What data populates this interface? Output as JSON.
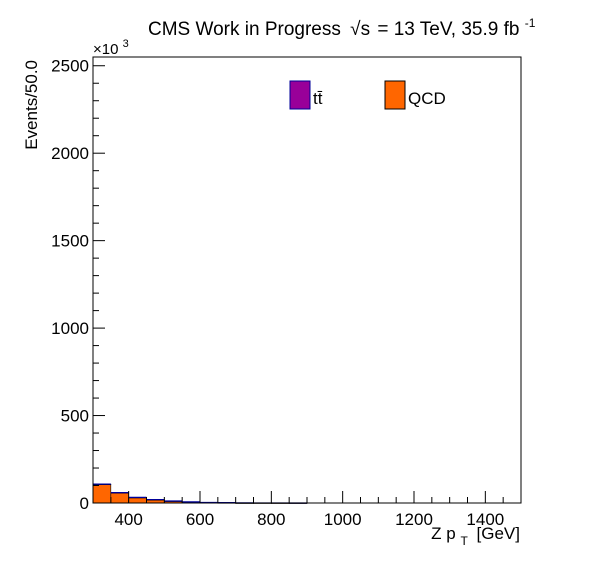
{
  "header": {
    "title_main": "CMS Work in Progress",
    "title_sqrt": "√s",
    "title_energy": "= 13 TeV, 35.9 fb",
    "title_sup": "-1"
  },
  "chart_data": {
    "type": "bar",
    "style": "stacked histogram",
    "xlabel_main": "Z p",
    "xlabel_sub": "T",
    "xlabel_unit": "[GeV]",
    "ylabel": "Events/50.0",
    "y_multiplier": "×10",
    "y_multiplier_exp": "3",
    "xlim": [
      300,
      1500
    ],
    "ylim": [
      0,
      2550
    ],
    "x_ticks": [
      400,
      600,
      800,
      1000,
      1200,
      1400
    ],
    "y_ticks": [
      0,
      500,
      1000,
      1500,
      2000,
      2500
    ],
    "bin_edges": [
      300,
      350,
      400,
      450,
      500,
      550,
      600,
      650,
      700,
      750,
      800,
      850,
      900,
      950,
      1000,
      1050,
      1100,
      1150,
      1200,
      1250,
      1300,
      1350,
      1400,
      1450,
      1500
    ],
    "legend_position": "top",
    "series": [
      {
        "name": "QCD",
        "color": "#ff6600",
        "values": [
          106,
          58,
          31,
          19,
          11,
          6,
          3,
          2,
          1,
          0.5,
          0.3,
          0.2,
          0,
          0,
          0,
          0,
          0,
          0,
          0,
          0,
          0,
          0,
          0,
          0
        ]
      },
      {
        "name": "tt̄",
        "color": "#990099",
        "values": [
          2,
          1.5,
          1,
          0.6,
          0.4,
          0.3,
          0.2,
          0.1,
          0.05,
          0,
          0,
          0,
          0,
          0,
          0,
          0,
          0,
          0,
          0,
          0,
          0,
          0,
          0,
          0
        ]
      }
    ],
    "outline_color": "#000099"
  }
}
